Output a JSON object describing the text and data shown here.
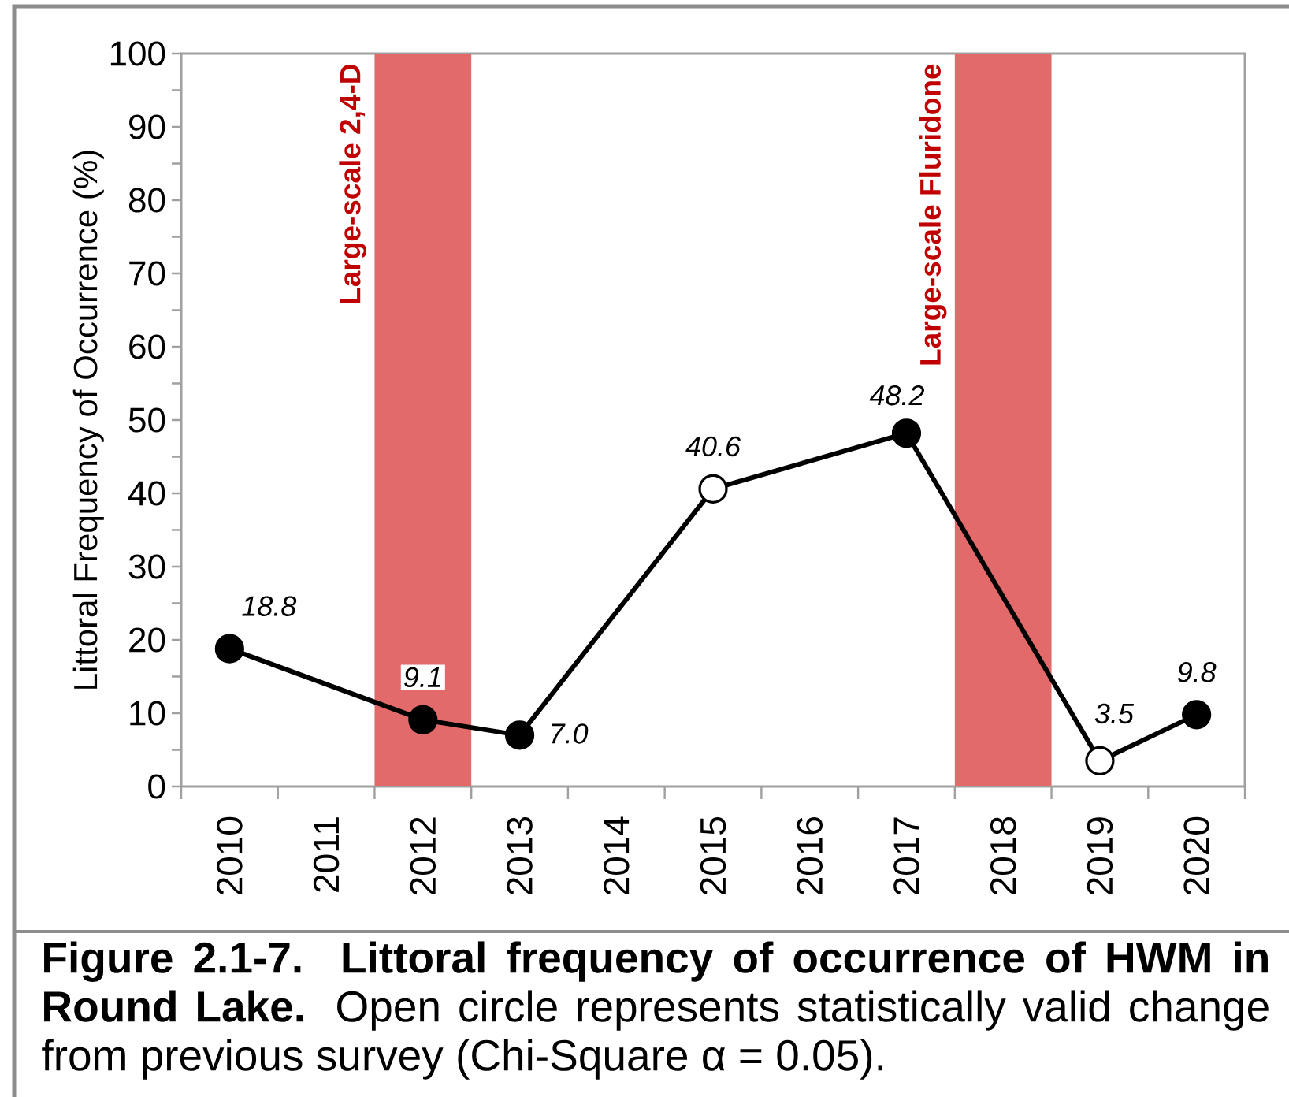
{
  "chart_data": {
    "type": "line",
    "ylabel": "Littoral Frequency of Occurrence (%)",
    "categories": [
      "2010",
      "2011",
      "2012",
      "2013",
      "2014",
      "2015",
      "2016",
      "2017",
      "2018",
      "2019",
      "2020"
    ],
    "series": [
      {
        "color": "#000000",
        "values": [
          18.8,
          null,
          9.1,
          7.0,
          null,
          40.6,
          null,
          48.2,
          null,
          3.5,
          9.8
        ],
        "colors": [
          "#000000",
          null,
          "#000000",
          "#000000",
          null,
          "#ffffff",
          null,
          "#000000",
          null,
          "#ffffff",
          "#000000"
        ],
        "value_labels": [
          "18.8",
          null,
          "9.1",
          "7.0",
          null,
          "40.6",
          null,
          "48.2",
          null,
          "3.5",
          "9.8"
        ]
      }
    ],
    "ylim": [
      0,
      100
    ],
    "yticks": [
      0,
      {
        "value": 5,
        "label": null
      },
      10,
      {
        "value": 15,
        "label": null
      },
      20,
      {
        "value": 25,
        "label": null
      },
      30,
      {
        "value": 35,
        "label": null
      },
      40,
      {
        "value": 45,
        "label": null
      },
      50,
      {
        "value": 55,
        "label": null
      },
      60,
      {
        "value": 65,
        "label": null
      },
      70,
      {
        "value": 75,
        "label": null
      },
      80,
      {
        "value": 85,
        "label": null
      },
      90,
      {
        "value": 95,
        "label": null
      },
      100
    ],
    "marker": "circle",
    "line_style": "solid",
    "bands": [
      {
        "axis": "x",
        "from": "2012",
        "to": "2012",
        "label": "Large-scale 2,4-D",
        "color": "#e26a6a"
      },
      {
        "axis": "x",
        "from": "2018",
        "to": "2018",
        "label": "Large-scale Fluridone",
        "color": "#e26a6a"
      }
    ],
    "annotations": [
      "**Figure 2.1-7. Littoral frequency of occurrence of HWM in Round Lake.** Open circle represents statistically valid change from previous survey (Chi-Square α = 0.05)."
    ]
  }
}
